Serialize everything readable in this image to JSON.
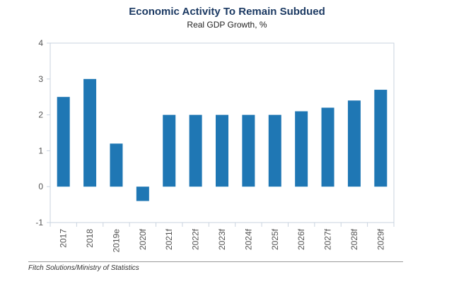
{
  "chart_data": {
    "type": "bar",
    "title": "Economic Activity To Remain Subdued",
    "subtitle": "Real GDP Growth, %",
    "categories": [
      "2017",
      "2018",
      "2019e",
      "2020f",
      "2021f",
      "2022f",
      "2023f",
      "2024f",
      "2025f",
      "2026f",
      "2027f",
      "2028f",
      "2029f"
    ],
    "values": [
      2.5,
      3.0,
      1.2,
      -0.4,
      2.0,
      2.0,
      2.0,
      2.0,
      2.0,
      2.1,
      2.2,
      2.4,
      2.7
    ],
    "ylim": [
      -1,
      4
    ],
    "yticks": [
      -1,
      0,
      1,
      2,
      3,
      4
    ],
    "xlabel": "",
    "ylabel": "",
    "grid": false,
    "bar_color": "#1f77b4"
  },
  "footnote": "Fitch Solutions/Ministry of Statistics"
}
